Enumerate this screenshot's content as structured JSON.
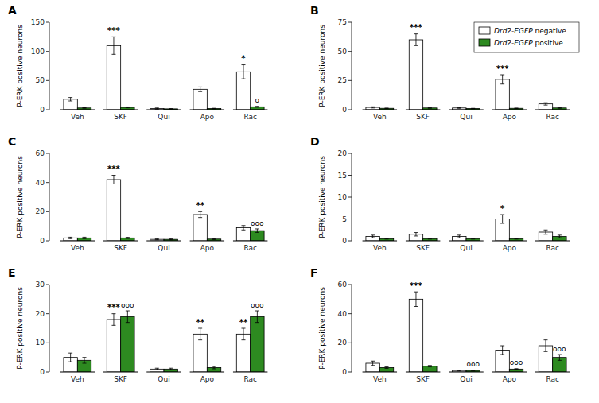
{
  "chart_data": [
    {
      "type": "bar",
      "title": "A",
      "y_label": "P-ERK positive neurons",
      "categories": [
        "Veh",
        "SKF",
        "Qui",
        "Apo",
        "Rac"
      ],
      "ylim": [
        0,
        150
      ],
      "yticks": [
        0,
        50,
        100,
        150
      ],
      "grid": false,
      "series": [
        {
          "color": "#ffffff",
          "values": [
            18,
            110,
            2,
            35,
            65
          ],
          "errors": [
            3,
            15,
            1,
            4,
            12
          ],
          "significance": [
            null,
            "***",
            null,
            null,
            "*"
          ]
        },
        {
          "color": "#2d8a20",
          "values": [
            3,
            4,
            1.5,
            2,
            5
          ],
          "errors": [
            0.5,
            0.8,
            0.3,
            0.5,
            0.8
          ],
          "significance": [
            null,
            null,
            null,
            null,
            "o"
          ]
        }
      ]
    },
    {
      "type": "bar",
      "title": "B",
      "y_label": "P-ERK positive neurons",
      "categories": [
        "Veh",
        "SKF",
        "Qui",
        "Apo",
        "Rac"
      ],
      "ylim": [
        0,
        75
      ],
      "yticks": [
        0,
        25,
        50,
        75
      ],
      "grid": false,
      "legend": "upper right",
      "series": [
        {
          "name": "Drd2-EGFP negative",
          "color": "#ffffff",
          "values": [
            2,
            60,
            1.5,
            26,
            5
          ],
          "errors": [
            0.5,
            5,
            0.3,
            4,
            1
          ],
          "significance": [
            null,
            "***",
            null,
            "***",
            null
          ]
        },
        {
          "name": "Drd2-EGFP positive",
          "color": "#2d8a20",
          "values": [
            1.2,
            1.5,
            1,
            1.2,
            1.5
          ],
          "errors": [
            0.2,
            0.3,
            0.2,
            0.2,
            0.3
          ],
          "significance": [
            null,
            null,
            null,
            null,
            null
          ]
        }
      ]
    },
    {
      "type": "bar",
      "title": "C",
      "y_label": "P-ERK positive neurons",
      "categories": [
        "Veh",
        "SKF",
        "Qui",
        "Apo",
        "Rac"
      ],
      "ylim": [
        0,
        60
      ],
      "yticks": [
        0,
        20,
        40,
        60
      ],
      "grid": false,
      "series": [
        {
          "color": "#ffffff",
          "values": [
            2,
            42,
            1,
            18,
            9
          ],
          "errors": [
            0.5,
            3,
            0.3,
            2,
            1.5
          ],
          "significance": [
            null,
            "***",
            null,
            "**",
            null
          ]
        },
        {
          "color": "#2d8a20",
          "values": [
            2,
            2,
            1,
            1.2,
            7
          ],
          "errors": [
            0.5,
            0.4,
            0.3,
            0.3,
            1.2
          ],
          "significance": [
            null,
            null,
            null,
            null,
            "ooo"
          ]
        }
      ]
    },
    {
      "type": "bar",
      "title": "D",
      "y_label": "P-ERK positive neurons",
      "categories": [
        "Veh",
        "SKF",
        "Qui",
        "Apo",
        "Rac"
      ],
      "ylim": [
        0,
        20
      ],
      "yticks": [
        0,
        5,
        10,
        15,
        20
      ],
      "grid": false,
      "series": [
        {
          "color": "#ffffff",
          "values": [
            1,
            1.5,
            1,
            5,
            2
          ],
          "errors": [
            0.3,
            0.4,
            0.3,
            1,
            0.5
          ],
          "significance": [
            null,
            null,
            null,
            "*",
            null
          ]
        },
        {
          "color": "#2d8a20",
          "values": [
            0.5,
            0.5,
            0.5,
            0.5,
            1
          ],
          "errors": [
            0.1,
            0.1,
            0.1,
            0.1,
            0.3
          ],
          "significance": [
            null,
            null,
            null,
            null,
            null
          ]
        }
      ]
    },
    {
      "type": "bar",
      "title": "E",
      "y_label": "P-ERK positive neurons",
      "categories": [
        "Veh",
        "SKF",
        "Qui",
        "Apo",
        "Rac"
      ],
      "ylim": [
        0,
        30
      ],
      "yticks": [
        0,
        10,
        20,
        30
      ],
      "grid": false,
      "series": [
        {
          "color": "#ffffff",
          "values": [
            5,
            18,
            1,
            13,
            13
          ],
          "errors": [
            1.5,
            2,
            0.3,
            2,
            2
          ],
          "significance": [
            null,
            "***",
            null,
            "**",
            "**"
          ]
        },
        {
          "color": "#2d8a20",
          "values": [
            4,
            19,
            1,
            1.5,
            19
          ],
          "errors": [
            1,
            2,
            0.3,
            0.4,
            2
          ],
          "significance": [
            null,
            "ooo",
            null,
            null,
            "ooo"
          ]
        }
      ]
    },
    {
      "type": "bar",
      "title": "F",
      "y_label": "P-ERK positive neurons",
      "categories": [
        "Veh",
        "SKF",
        "Qui",
        "Apo",
        "Rac"
      ],
      "ylim": [
        0,
        60
      ],
      "yticks": [
        0,
        20,
        40,
        60
      ],
      "grid": false,
      "series": [
        {
          "color": "#ffffff",
          "values": [
            6,
            50,
            1,
            15,
            18
          ],
          "errors": [
            1.5,
            5,
            0.3,
            3,
            4
          ],
          "significance": [
            null,
            "***",
            null,
            null,
            null
          ]
        },
        {
          "color": "#2d8a20",
          "values": [
            3,
            4,
            1,
            2,
            10
          ],
          "errors": [
            0.5,
            0.5,
            0.3,
            0.3,
            2
          ],
          "significance": [
            null,
            null,
            "ooo",
            "ooo",
            "ooo"
          ]
        }
      ]
    }
  ]
}
